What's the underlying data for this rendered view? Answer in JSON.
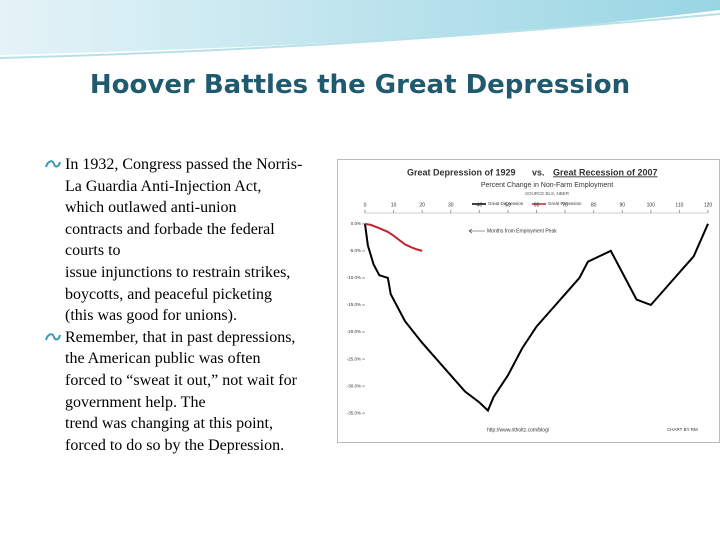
{
  "header": {
    "title": "Hoover Battles the Great Depression"
  },
  "bullets": [
    {
      "lines": [
        "In 1932, Congress passed the Norris-",
        "La Guardia Anti-Injection Act,",
        "which outlawed anti-union",
        "contracts and forbade the federal",
        "courts to",
        "issue injunctions to restrain strikes,",
        "boycotts, and peaceful picketing",
        "(this was good for unions)."
      ]
    },
    {
      "lines": [
        "Remember, that in past depressions,",
        "the American public was often",
        "forced to “sweat it out,” not wait for",
        "government help. The",
        "trend was changing at this point,",
        "forced to do so by the Depression."
      ]
    }
  ],
  "chart": {
    "type": "line",
    "title_left": "Great Depression of 1929",
    "title_mid": "vs.",
    "title_right": "Great Recession of 2007",
    "subtitle": "Percent Change in Non-Farm Employment",
    "source": "SOURCE BLS, NBER",
    "x_label": "Months from Employment Peak",
    "url": "http://www.ritholtz.com/blog/",
    "credit": "CHART BY RM",
    "xlim": [
      0,
      120
    ],
    "xticks": [
      0,
      10,
      20,
      30,
      40,
      50,
      60,
      70,
      80,
      90,
      100,
      110,
      120
    ],
    "ylim": [
      -37,
      2
    ],
    "yticks": [
      {
        "value": 0,
        "label": "0.0%"
      },
      {
        "value": -5,
        "label": "-5.0%"
      },
      {
        "value": -10,
        "label": "-10.0%"
      },
      {
        "value": -15,
        "label": "-15.0%"
      },
      {
        "value": -20,
        "label": "-20.0%"
      },
      {
        "value": -25,
        "label": "-25.0%"
      },
      {
        "value": -30,
        "label": "-30.0%"
      },
      {
        "value": -35,
        "label": "-35.0%"
      }
    ],
    "series": [
      {
        "name": "Great Depression",
        "color": "#000000",
        "x": [
          0,
          1,
          3,
          5,
          8,
          9,
          14,
          20,
          25,
          30,
          35,
          40,
          43,
          45,
          50,
          55,
          60,
          65,
          70,
          75,
          78,
          82,
          86,
          90,
          95,
          100,
          105,
          110,
          115,
          120
        ],
        "values": [
          0,
          -4,
          -7.5,
          -9.5,
          -10,
          -13,
          -18,
          -22,
          -25,
          -28,
          -31,
          -33,
          -34.5,
          -32,
          -28,
          -23,
          -19,
          -16,
          -13,
          -10,
          -7,
          -6,
          -5,
          -9,
          -14,
          -15,
          -12,
          -9,
          -6,
          0
        ]
      },
      {
        "name": "Great Recession",
        "color": "#c0272d",
        "x": [
          0,
          2,
          5,
          8,
          10,
          12,
          14,
          16,
          18,
          20
        ],
        "values": [
          0,
          -0.2,
          -0.8,
          -1.5,
          -2.2,
          -3.0,
          -3.8,
          -4.3,
          -4.7,
          -5.0
        ]
      }
    ]
  }
}
